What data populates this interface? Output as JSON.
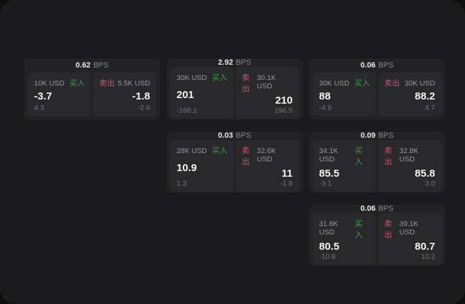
{
  "labels": {
    "bps_unit": "BPS",
    "buy": "买入",
    "sell": "卖出"
  },
  "colors": {
    "buy": "#3da04f",
    "sell": "#cf5270",
    "surface": "#1b1b1d",
    "card": "#232325",
    "panel": "#29292b"
  },
  "cards": [
    {
      "bps": "0.62",
      "buy": {
        "amount": "10K USD",
        "value": "-3.7",
        "sub": "4.3"
      },
      "sell": {
        "amount": "5.5K USD",
        "value": "-1.8",
        "sub": "-2.6"
      }
    },
    {
      "bps": "2.92",
      "buy": {
        "amount": "30K USD",
        "value": "201",
        "sub": "-188.1"
      },
      "sell": {
        "amount": "30.1K USD",
        "value": "210",
        "sub": "196.5"
      }
    },
    {
      "bps": "0.06",
      "buy": {
        "amount": "30K USD",
        "value": "88",
        "sub": "-4.9"
      },
      "sell": {
        "amount": "30K USD",
        "value": "88.2",
        "sub": "4.7"
      }
    },
    {
      "bps": "0.03",
      "buy": {
        "amount": "28K USD",
        "value": "10.9",
        "sub": "1.3"
      },
      "sell": {
        "amount": "32.6K USD",
        "value": "11",
        "sub": "-1.8"
      }
    },
    {
      "bps": "0.09",
      "buy": {
        "amount": "34.1K USD",
        "value": "85.5",
        "sub": "-3.1"
      },
      "sell": {
        "amount": "32.8K USD",
        "value": "85.8",
        "sub": "3.0"
      }
    },
    {
      "bps": "0.06",
      "buy": {
        "amount": "31.8K USD",
        "value": "80.5",
        "sub": "-10.8"
      },
      "sell": {
        "amount": "39.1K USD",
        "value": "80.7",
        "sub": "10.2"
      }
    }
  ]
}
